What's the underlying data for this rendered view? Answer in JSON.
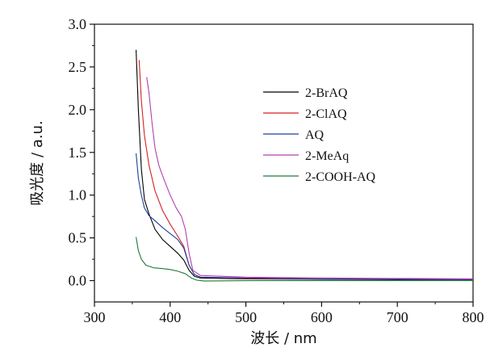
{
  "chart_data": {
    "type": "line",
    "xlabel": "波长 / nm",
    "ylabel": "吸光度 / a.u.",
    "xlim": [
      300,
      800
    ],
    "ylim": [
      -0.25,
      3.0
    ],
    "xticks": [
      300,
      400,
      500,
      600,
      700,
      800
    ],
    "yticks": [
      0.0,
      0.5,
      1.0,
      1.5,
      2.0,
      2.5,
      3.0
    ],
    "xtick_labels": [
      "300",
      "400",
      "500",
      "600",
      "700",
      "800"
    ],
    "ytick_labels": [
      "0.0",
      "0.5",
      "1.0",
      "1.5",
      "2.0",
      "2.5",
      "3.0"
    ],
    "grid": false,
    "legend_position": "top-right",
    "series": [
      {
        "name": "2-BrAQ",
        "color": "#000000",
        "points": [
          [
            355,
            2.7
          ],
          [
            358,
            2.0
          ],
          [
            362,
            1.3
          ],
          [
            366,
            0.95
          ],
          [
            372,
            0.78
          ],
          [
            380,
            0.6
          ],
          [
            390,
            0.48
          ],
          [
            400,
            0.4
          ],
          [
            410,
            0.32
          ],
          [
            418,
            0.24
          ],
          [
            425,
            0.12
          ],
          [
            432,
            0.05
          ],
          [
            440,
            0.03
          ],
          [
            500,
            0.02
          ],
          [
            600,
            0.015
          ],
          [
            700,
            0.01
          ],
          [
            800,
            0.01
          ]
        ]
      },
      {
        "name": "2-ClAQ",
        "color": "#d62020",
        "points": [
          [
            359,
            2.58
          ],
          [
            362,
            2.1
          ],
          [
            366,
            1.7
          ],
          [
            372,
            1.35
          ],
          [
            380,
            1.05
          ],
          [
            390,
            0.82
          ],
          [
            400,
            0.66
          ],
          [
            410,
            0.52
          ],
          [
            418,
            0.4
          ],
          [
            425,
            0.18
          ],
          [
            432,
            0.07
          ],
          [
            440,
            0.04
          ],
          [
            500,
            0.025
          ],
          [
            600,
            0.02
          ],
          [
            700,
            0.015
          ],
          [
            800,
            0.01
          ]
        ]
      },
      {
        "name": "AQ",
        "color": "#1f3f9f",
        "points": [
          [
            355,
            1.49
          ],
          [
            358,
            1.2
          ],
          [
            362,
            1.0
          ],
          [
            366,
            0.85
          ],
          [
            372,
            0.76
          ],
          [
            380,
            0.7
          ],
          [
            390,
            0.62
          ],
          [
            400,
            0.55
          ],
          [
            410,
            0.48
          ],
          [
            418,
            0.38
          ],
          [
            425,
            0.18
          ],
          [
            432,
            0.07
          ],
          [
            440,
            0.04
          ],
          [
            500,
            0.03
          ],
          [
            600,
            0.02
          ],
          [
            700,
            0.015
          ],
          [
            800,
            0.01
          ]
        ]
      },
      {
        "name": "2-MeAq",
        "color": "#b040b0",
        "points": [
          [
            369,
            2.38
          ],
          [
            372,
            2.2
          ],
          [
            376,
            1.85
          ],
          [
            380,
            1.55
          ],
          [
            385,
            1.35
          ],
          [
            392,
            1.18
          ],
          [
            400,
            1.0
          ],
          [
            408,
            0.85
          ],
          [
            415,
            0.75
          ],
          [
            420,
            0.6
          ],
          [
            425,
            0.32
          ],
          [
            430,
            0.12
          ],
          [
            440,
            0.06
          ],
          [
            500,
            0.04
          ],
          [
            600,
            0.03
          ],
          [
            700,
            0.025
          ],
          [
            800,
            0.02
          ]
        ]
      },
      {
        "name": "2-COOH-AQ",
        "color": "#1e7a3a",
        "points": [
          [
            355,
            0.51
          ],
          [
            358,
            0.35
          ],
          [
            362,
            0.25
          ],
          [
            368,
            0.18
          ],
          [
            378,
            0.15
          ],
          [
            390,
            0.14
          ],
          [
            400,
            0.13
          ],
          [
            410,
            0.11
          ],
          [
            420,
            0.08
          ],
          [
            428,
            0.03
          ],
          [
            435,
            0.005
          ],
          [
            445,
            -0.005
          ],
          [
            500,
            0.0
          ],
          [
            600,
            0.0
          ],
          [
            700,
            0.0
          ],
          [
            800,
            0.0
          ]
        ]
      }
    ]
  }
}
